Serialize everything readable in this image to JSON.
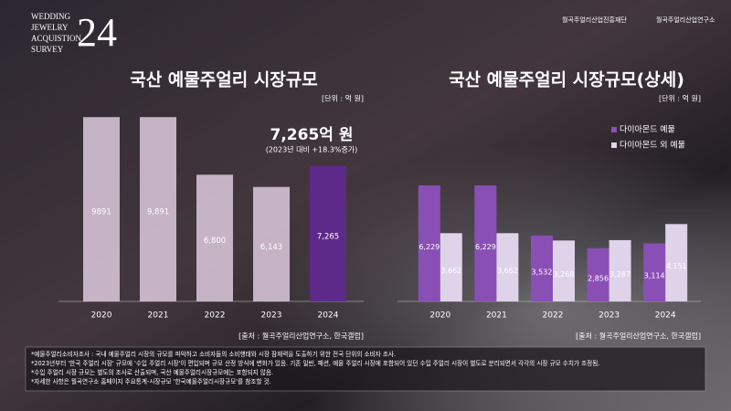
{
  "header": {
    "logo_lines": [
      "WEDDING",
      "JEWELRY",
      "ACQUISTION",
      "SURVEY"
    ],
    "logo_year": "24",
    "org_1": "월곡주얼리산업진흥재단",
    "org_2": "월곡주얼리산업연구소"
  },
  "chart_data": [
    {
      "type": "bar",
      "title": "국산 예물주얼리 시장규모",
      "unit": "[단위 : 억 원]",
      "categories": [
        "2020",
        "2021",
        "2022",
        "2023",
        "2024"
      ],
      "values": [
        9891,
        9891,
        6800,
        6143,
        7265
      ],
      "value_labels": [
        "9891",
        "9,891",
        "6,800",
        "6,143",
        "7,265"
      ],
      "colors": [
        "#ddc9de",
        "#ddc9de",
        "#ddc9de",
        "#ddc9de",
        "#5e2a8a"
      ],
      "annotation": "7,265억 원",
      "annotation_sub": "(2023년 대비 +18.3%증가)",
      "source": "[출처 : 월곡주얼리산업연구소, 한국갤럽]",
      "ylim": [
        0,
        10000
      ]
    },
    {
      "type": "bar",
      "title": "국산 예물주얼리 시장규모(상세)",
      "unit": "[단위 : 억 원]",
      "categories": [
        "2020",
        "2021",
        "2022",
        "2023",
        "2024"
      ],
      "series": [
        {
          "name": "다이아몬드 예물",
          "color": "#8a4fb5",
          "values": [
            6229,
            6229,
            3532,
            2856,
            3114
          ],
          "value_labels": [
            "6,229",
            "6,229",
            "3,532",
            "2,856",
            "3,114"
          ]
        },
        {
          "name": "다이아몬드 외 예물",
          "color": "#ded3e8",
          "values": [
            3662,
            3662,
            3268,
            3287,
            4151
          ],
          "value_labels": [
            "3,662",
            "3,662",
            "3,268",
            "3,287",
            "4,151"
          ]
        }
      ],
      "legend": "upper right",
      "source": "[출처 : 월곡주얼리산업연구소, 한국갤럽]",
      "ylim": [
        0,
        10000
      ]
    }
  ],
  "notes": [
    "*예물주얼리소비자조사 : 국내 예물주얼리 시장의 규모를 파악하고 소비자들의 소비행태와 시장 잠재력을 도출하기 위한 전국 단위의 소비자 조사.",
    "*2023년부터 '한국 주얼리 시장' 규모에 '수입 주얼리 시장'이 편입되며 규모 산정 방식에 변화가 있음. 기존 일반, 패션, 예물 주얼리 시장에 포함되어 있던 수입 주얼리 시장이 별도로 분리되면서 각각의 시장 규모 수치가 조정됨.",
    "*수입 주얼리 시장 규모는 별도의 조사로 산출되며, 국산 예물주얼리시장규모에는 포함되지 않음.",
    "*자세한 사항은 월곡연구소 홈페이지 주요통계-시장규모 '한국예물주얼리시장규모'를 참조할 것."
  ]
}
